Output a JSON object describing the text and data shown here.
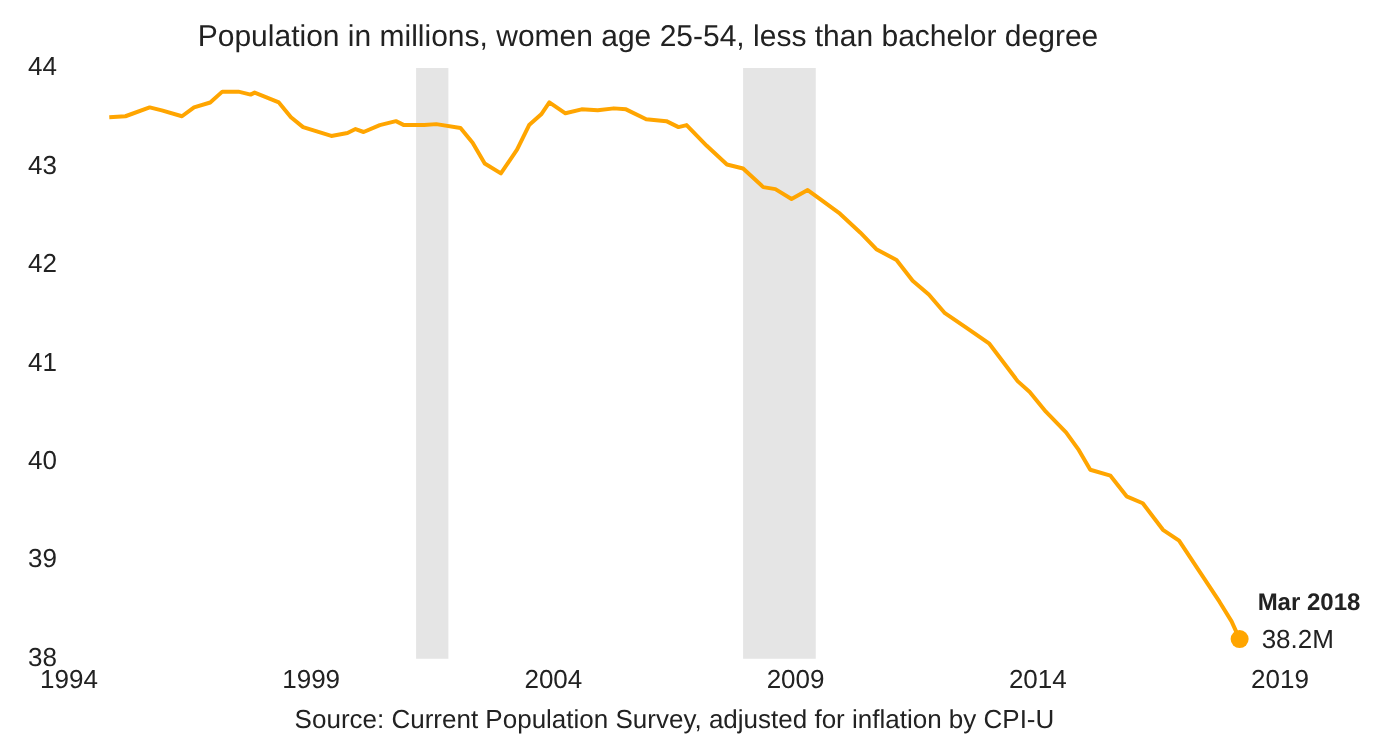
{
  "chart_data": {
    "type": "line",
    "title": "Population in millions, women age 25-54, less than bachelor degree",
    "annotations": [
      {
        "text": "Mar 2018",
        "x": "2018-03",
        "y": 38.2
      },
      "Source: Current Population Survey, adjusted for inflation by CPI-U"
    ],
    "xlim": [
      "1994",
      "2019"
    ],
    "xticks": [
      "1994",
      "1999",
      "2004",
      "2009",
      "2014",
      "2019"
    ],
    "ylim": [
      38,
      44
    ],
    "yticks": [
      38,
      39,
      40,
      41,
      42,
      43,
      44
    ],
    "grid": false,
    "legend": false,
    "bands": [
      {
        "axis": "x",
        "from": "2001-03",
        "to": "2001-11",
        "color": "#e5e5e5"
      },
      {
        "axis": "x",
        "from": "2007-12",
        "to": "2009-06",
        "color": "#e5e5e5"
      }
    ],
    "series": [
      {
        "color": "#ffa500",
        "marker": "none",
        "x": [
          "1994-11",
          "1995-03",
          "1995-09",
          "1995-12",
          "1996-05",
          "1996-08",
          "1996-12",
          "1997-03",
          "1997-07",
          "1997-10",
          "1997-11",
          "1998-05",
          "1998-08",
          "1998-11",
          "1999-06",
          "1999-10",
          "1999-12",
          "2000-02",
          "2000-06",
          "2000-10",
          "2000-12",
          "2001-05",
          "2001-08",
          "2002-02",
          "2002-05",
          "2002-08",
          "2002-12",
          "2003-04",
          "2003-07",
          "2003-10",
          "2003-12",
          "2004-04",
          "2004-08",
          "2004-12",
          "2005-04",
          "2005-07",
          "2005-12",
          "2006-05",
          "2006-08",
          "2006-10",
          "2007-03",
          "2007-08",
          "2007-12",
          "2008-05",
          "2008-08",
          "2008-12",
          "2009-04",
          "2009-07",
          "2009-12",
          "2010-05",
          "2010-09",
          "2011-02",
          "2011-06",
          "2011-10",
          "2012-02",
          "2012-07",
          "2013-01",
          "2013-08",
          "2013-11",
          "2014-03",
          "2014-08",
          "2014-11",
          "2015-02",
          "2015-07",
          "2015-11",
          "2016-03",
          "2016-08",
          "2016-12",
          "2017-05",
          "2017-10",
          "2018-01",
          "2018-03"
        ],
        "values": [
          43.5,
          43.51,
          43.6,
          43.57,
          43.51,
          43.6,
          43.65,
          43.76,
          43.76,
          43.73,
          43.75,
          43.65,
          43.5,
          43.4,
          43.31,
          43.34,
          43.38,
          43.35,
          43.42,
          43.46,
          43.42,
          43.42,
          43.43,
          43.39,
          43.24,
          43.03,
          42.93,
          43.17,
          43.42,
          43.53,
          43.65,
          43.54,
          43.58,
          43.57,
          43.59,
          43.58,
          43.48,
          43.46,
          43.4,
          43.42,
          43.21,
          43.02,
          42.98,
          42.79,
          42.77,
          42.67,
          42.76,
          42.67,
          42.52,
          42.33,
          42.16,
          42.05,
          41.84,
          41.7,
          41.51,
          41.37,
          41.2,
          40.82,
          40.71,
          40.51,
          40.3,
          40.13,
          39.92,
          39.86,
          39.65,
          39.58,
          39.31,
          39.2,
          38.89,
          38.58,
          38.38,
          38.2
        ]
      },
      {
        "type": "scatter",
        "color": "#ffa500",
        "marker": "circle",
        "x": [
          "2018-03"
        ],
        "values": [
          38.2
        ],
        "value_labels": [
          "38.2M"
        ]
      }
    ]
  }
}
